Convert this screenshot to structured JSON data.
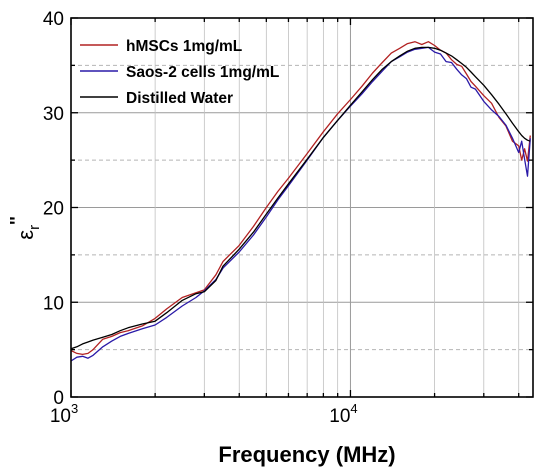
{
  "chart_data": {
    "type": "line",
    "title": "",
    "xlabel": "Frequency (MHz)",
    "ylabel": "ε_r''",
    "ylabel_main": "ε",
    "ylabel_sub": "r",
    "ylabel_sup": "''",
    "x_scale": "log",
    "xlim": [
      1000,
      45000
    ],
    "ylim": [
      0,
      40
    ],
    "x_ticks": [
      1000,
      10000
    ],
    "x_tick_labels": [
      {
        "base": "10",
        "exp": "3"
      },
      {
        "base": "10",
        "exp": "4"
      }
    ],
    "y_ticks": [
      0,
      10,
      20,
      30,
      40
    ],
    "y_tick_labels": [
      "0",
      "10",
      "20",
      "30",
      "40"
    ],
    "grid": true,
    "legend_position": "top-left",
    "series": [
      {
        "name": "hMSCs 1mg/mL",
        "color": "#b22222",
        "x": [
          1000,
          1050,
          1100,
          1150,
          1200,
          1300,
          1400,
          1500,
          1600,
          1800,
          2000,
          2200,
          2500,
          2800,
          3000,
          3300,
          3500,
          4000,
          4500,
          5000,
          5500,
          6000,
          7000,
          8000,
          9000,
          10000,
          11000,
          12000,
          13000,
          14000,
          15000,
          16000,
          17000,
          18000,
          19000,
          20000,
          21000,
          22000,
          23000,
          24000,
          25000,
          26000,
          27000,
          28000,
          30000,
          32000,
          34000,
          36000,
          38000,
          40000,
          41000,
          42000,
          43000,
          44000
        ],
        "y": [
          4.9,
          4.6,
          4.5,
          4.6,
          5.0,
          6.1,
          6.4,
          6.8,
          7.0,
          7.5,
          8.3,
          9.3,
          10.5,
          11.0,
          11.3,
          12.9,
          14.3,
          16.0,
          18.0,
          20.0,
          21.7,
          23.1,
          25.7,
          28.0,
          29.9,
          31.4,
          32.8,
          34.2,
          35.3,
          36.3,
          36.8,
          37.3,
          37.5,
          37.2,
          37.5,
          37.1,
          36.6,
          36.3,
          35.6,
          35.1,
          34.9,
          34.1,
          33.3,
          32.8,
          31.8,
          31.0,
          29.5,
          28.6,
          27.0,
          26.5,
          25.0,
          26.2,
          24.9,
          27.6
        ]
      },
      {
        "name": "Saos-2 cells 1mg/mL",
        "color": "#2a1aa8",
        "x": [
          1000,
          1050,
          1100,
          1150,
          1200,
          1300,
          1400,
          1500,
          1600,
          1800,
          2000,
          2200,
          2500,
          2800,
          3000,
          3300,
          3500,
          4000,
          4500,
          5000,
          5500,
          6000,
          7000,
          8000,
          9000,
          10000,
          11000,
          12000,
          13000,
          14000,
          15000,
          16000,
          17000,
          18000,
          19000,
          20000,
          21000,
          22000,
          23000,
          24000,
          25000,
          26000,
          27000,
          28000,
          30000,
          32000,
          34000,
          36000,
          38000,
          40000,
          41000,
          42000,
          43000,
          44000
        ],
        "y": [
          3.8,
          4.2,
          4.3,
          4.1,
          4.4,
          5.3,
          5.9,
          6.4,
          6.7,
          7.2,
          7.6,
          8.4,
          9.6,
          10.5,
          11.2,
          12.4,
          13.6,
          15.3,
          17.1,
          19.0,
          20.8,
          22.3,
          25.0,
          27.4,
          29.2,
          30.7,
          32.0,
          33.3,
          34.4,
          35.4,
          35.9,
          36.4,
          36.7,
          36.8,
          36.9,
          36.4,
          36.2,
          35.4,
          35.3,
          34.6,
          34.0,
          33.6,
          32.7,
          32.5,
          31.2,
          30.3,
          29.6,
          28.7,
          27.3,
          25.8,
          27.0,
          25.1,
          23.3,
          27.3
        ]
      },
      {
        "name": "Distilled Water",
        "color": "#000000",
        "x": [
          1000,
          1050,
          1100,
          1150,
          1200,
          1300,
          1400,
          1500,
          1600,
          1800,
          2000,
          2200,
          2500,
          2800,
          3000,
          3300,
          3500,
          4000,
          4500,
          5000,
          5500,
          6000,
          7000,
          8000,
          9000,
          10000,
          11000,
          12000,
          13000,
          14000,
          15000,
          16000,
          17000,
          18000,
          19000,
          20000,
          21000,
          22000,
          23000,
          24000,
          25000,
          26000,
          27000,
          28000,
          30000,
          32000,
          34000,
          36000,
          38000,
          40000,
          41000,
          42000,
          43000,
          44000
        ],
        "y": [
          5.1,
          5.3,
          5.6,
          5.8,
          6.0,
          6.3,
          6.6,
          7.0,
          7.3,
          7.7,
          8.0,
          8.9,
          10.2,
          10.9,
          11.1,
          12.3,
          13.8,
          15.6,
          17.4,
          19.3,
          21.0,
          22.5,
          25.1,
          27.4,
          29.2,
          30.8,
          32.2,
          33.5,
          34.6,
          35.4,
          36.0,
          36.5,
          36.8,
          36.9,
          36.9,
          36.8,
          36.6,
          36.3,
          36.0,
          35.6,
          35.2,
          34.8,
          34.3,
          33.8,
          32.9,
          31.9,
          30.9,
          29.9,
          28.9,
          28.0,
          27.6,
          27.3,
          27.1,
          27.0
        ]
      }
    ]
  }
}
